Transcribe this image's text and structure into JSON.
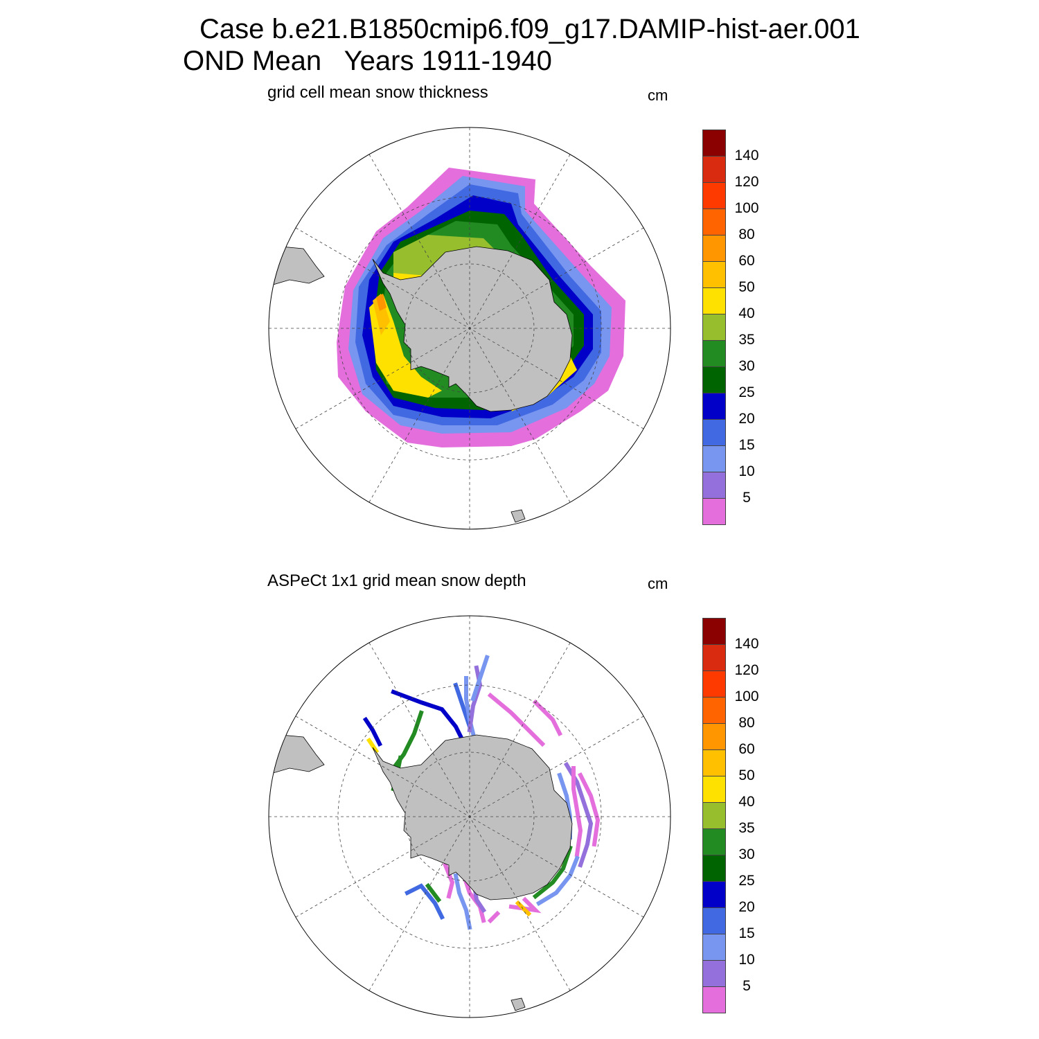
{
  "header": {
    "case_line": "Case b.e21.B1850cmip6.f09_g17.DAMIP-hist-aer.001",
    "period_line": "OND Mean   Years 1911-1940"
  },
  "panels": [
    {
      "id": "model",
      "subtitle": "grid cell mean snow thickness",
      "units": "cm"
    },
    {
      "id": "obs",
      "subtitle": "ASPeCt 1x1 grid mean snow depth",
      "units": "cm"
    }
  ],
  "colorbar": {
    "labels": [
      "140",
      "120",
      "100",
      "80",
      "60",
      "50",
      "40",
      "35",
      "30",
      "25",
      "20",
      "15",
      "10",
      "5"
    ],
    "colors_top_to_bottom": [
      "#8b0000",
      "#d92b10",
      "#ff3a00",
      "#ff6400",
      "#ff9600",
      "#ffc000",
      "#ffe100",
      "#96be2d",
      "#228b22",
      "#006400",
      "#0000c8",
      "#4169e1",
      "#7895f0",
      "#9370db",
      "#e36edc"
    ]
  },
  "map_colors": {
    "land": "#c0c0c0",
    "ocean": "#ffffff",
    "coast": "#000000"
  }
}
